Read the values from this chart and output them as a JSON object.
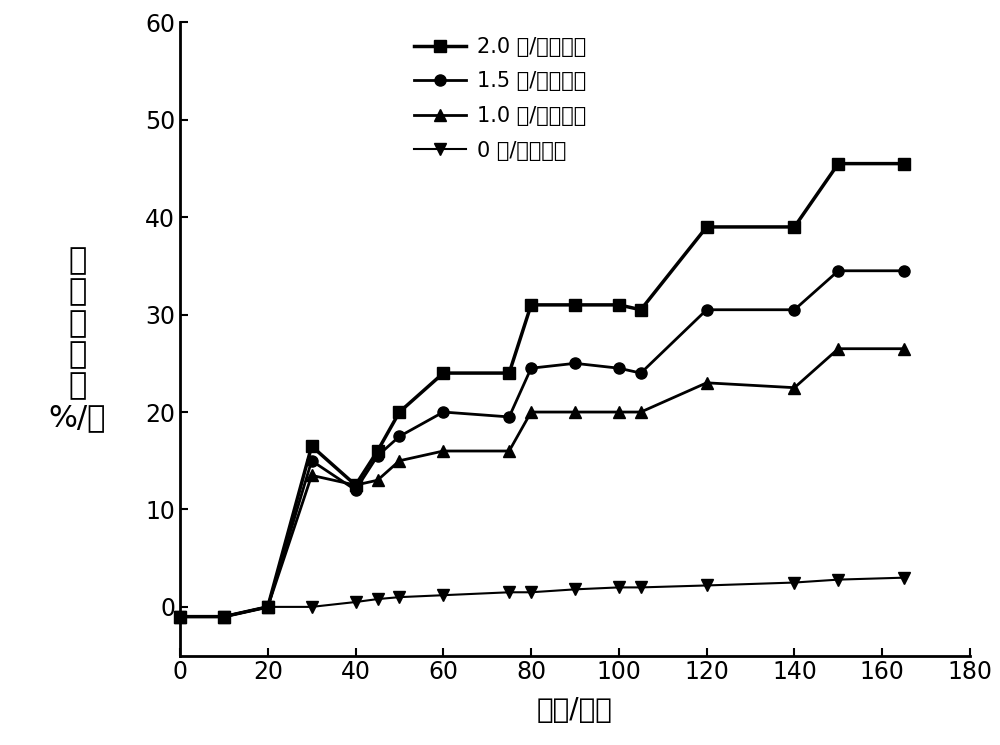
{
  "series": [
    {
      "label": "2.0 瓦/平方厘米",
      "marker": "s",
      "linewidth": 2.5,
      "x": [
        0,
        10,
        20,
        30,
        40,
        45,
        50,
        60,
        75,
        80,
        90,
        100,
        105,
        120,
        140,
        150,
        165
      ],
      "y": [
        -1,
        -1,
        0,
        16.5,
        12.5,
        16.0,
        20.0,
        24.0,
        24.0,
        31.0,
        31.0,
        31.0,
        30.5,
        39.0,
        39.0,
        45.5,
        45.5
      ]
    },
    {
      "label": "1.5 瓦/平方厘米",
      "marker": "o",
      "linewidth": 2.0,
      "x": [
        0,
        10,
        20,
        30,
        40,
        45,
        50,
        60,
        75,
        80,
        90,
        100,
        105,
        120,
        140,
        150,
        165
      ],
      "y": [
        -1,
        -1,
        0,
        15.0,
        12.0,
        15.5,
        17.5,
        20.0,
        19.5,
        24.5,
        25.0,
        24.5,
        24.0,
        30.5,
        30.5,
        34.5,
        34.5
      ]
    },
    {
      "label": "1.0 瓦/平方厘米",
      "marker": "^",
      "linewidth": 2.0,
      "x": [
        0,
        10,
        20,
        30,
        40,
        45,
        50,
        60,
        75,
        80,
        90,
        100,
        105,
        120,
        140,
        150,
        165
      ],
      "y": [
        -1,
        -1,
        0,
        13.5,
        12.5,
        13.0,
        15.0,
        16.0,
        16.0,
        20.0,
        20.0,
        20.0,
        20.0,
        23.0,
        22.5,
        26.5,
        26.5
      ]
    },
    {
      "label": "0 瓦/平方厘米",
      "marker": "v",
      "linewidth": 1.5,
      "x": [
        0,
        10,
        20,
        30,
        40,
        45,
        50,
        60,
        75,
        80,
        90,
        100,
        105,
        120,
        140,
        150,
        165
      ],
      "y": [
        -1,
        -1,
        0,
        0,
        0.5,
        0.8,
        1.0,
        1.2,
        1.5,
        1.5,
        1.8,
        2.0,
        2.0,
        2.2,
        2.5,
        2.8,
        3.0
      ]
    }
  ],
  "xlabel": "时间/分钟",
  "ylabel_lines": [
    "药",
    "物",
    "释",
    "效",
    "率",
    "%/率"
  ],
  "xlim": [
    0,
    180
  ],
  "ylim": [
    -5,
    60
  ],
  "xticks": [
    0,
    20,
    40,
    60,
    80,
    100,
    120,
    140,
    160,
    180
  ],
  "yticks": [
    0,
    10,
    20,
    30,
    40,
    50,
    60
  ],
  "color": "#000000",
  "background_color": "#ffffff",
  "markersize": 8,
  "legend_fontsize": 15,
  "tick_fontsize": 17,
  "label_fontsize": 20,
  "ylabel_fontsize": 22
}
